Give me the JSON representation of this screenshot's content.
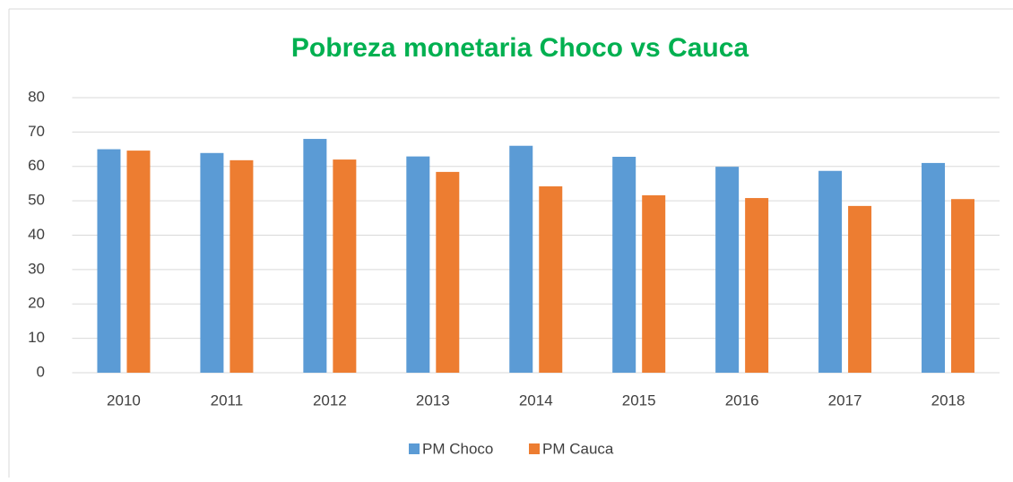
{
  "chart_data": {
    "type": "bar",
    "title": "Pobreza monetaria Choco vs Cauca",
    "categories": [
      "2010",
      "2011",
      "2012",
      "2013",
      "2014",
      "2015",
      "2016",
      "2017",
      "2018"
    ],
    "series": [
      {
        "name": "PM Choco",
        "color": "#5b9bd5",
        "values": [
          65,
          63.9,
          68,
          62.9,
          66,
          62.8,
          59.9,
          58.7,
          61
        ]
      },
      {
        "name": "PM Cauca",
        "color": "#ed7d31",
        "values": [
          64.6,
          61.8,
          62,
          58.4,
          54.2,
          51.6,
          50.8,
          48.5,
          50.5
        ]
      }
    ],
    "ylim": [
      0,
      80
    ],
    "yticks": [
      0,
      10,
      20,
      30,
      40,
      50,
      60,
      70,
      80
    ],
    "grid": true,
    "legend": "bottom"
  }
}
